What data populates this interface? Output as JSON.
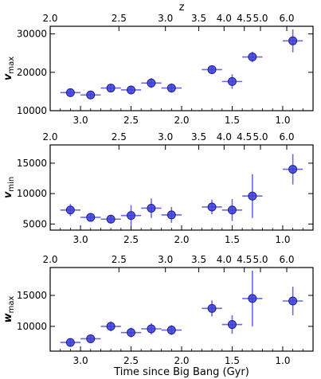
{
  "chart_data": [
    {
      "type": "scatter",
      "ylabel_main": "v",
      "ylabel_sub": "max",
      "ylim": [
        10000,
        32000
      ],
      "yticks": [
        10000,
        20000,
        30000
      ],
      "xlim": [
        3.3,
        0.7
      ],
      "xticks": [
        3.0,
        2.5,
        2.0,
        1.5,
        1.0
      ],
      "x_tick_labels": [
        "3.0",
        "2.5",
        "2.0",
        "1.5",
        "1.0"
      ],
      "top_axis_label": "z",
      "top_ticks": [
        {
          "label": "2.0",
          "t": 3.3
        },
        {
          "label": "2.5",
          "t": 2.62
        },
        {
          "label": "3.0",
          "t": 2.16
        },
        {
          "label": "3.5",
          "t": 1.83
        },
        {
          "label": "4.0",
          "t": 1.58
        },
        {
          "label": "4.5",
          "t": 1.38
        },
        {
          "label": "5.0",
          "t": 1.22
        },
        {
          "label": "6.0",
          "t": 0.96
        }
      ],
      "points": [
        {
          "x": 3.1,
          "y": 14700,
          "xerr": 0.1,
          "yerr": 900
        },
        {
          "x": 2.9,
          "y": 14100,
          "xerr": 0.1,
          "yerr": 700
        },
        {
          "x": 2.7,
          "y": 15900,
          "xerr": 0.1,
          "yerr": 900
        },
        {
          "x": 2.5,
          "y": 15400,
          "xerr": 0.1,
          "yerr": 900
        },
        {
          "x": 2.3,
          "y": 17200,
          "xerr": 0.1,
          "yerr": 1300
        },
        {
          "x": 2.1,
          "y": 15900,
          "xerr": 0.1,
          "yerr": 1200
        },
        {
          "x": 1.7,
          "y": 20700,
          "xerr": 0.1,
          "yerr": 1000
        },
        {
          "x": 1.5,
          "y": 17600,
          "xerr": 0.1,
          "yerr": 1900
        },
        {
          "x": 1.3,
          "y": 24000,
          "xerr": 0.1,
          "yerr": 1400
        },
        {
          "x": 0.9,
          "y": 28200,
          "xerr": 0.1,
          "yerr": 3000
        }
      ]
    },
    {
      "type": "scatter",
      "ylabel_main": "v",
      "ylabel_sub": "min",
      "ylim": [
        4000,
        18000
      ],
      "yticks": [
        5000,
        10000,
        15000
      ],
      "xlim": [
        3.3,
        0.7
      ],
      "xticks": [
        3.0,
        2.5,
        2.0,
        1.5,
        1.0
      ],
      "x_tick_labels": [
        "3.0",
        "2.5",
        "2.0",
        "1.5",
        "1.0"
      ],
      "top_axis_label": "",
      "top_ticks": [
        {
          "label": "2.0",
          "t": 3.3
        },
        {
          "label": "2.5",
          "t": 2.62
        },
        {
          "label": "3.0",
          "t": 2.16
        },
        {
          "label": "3.5",
          "t": 1.83
        },
        {
          "label": "4.0",
          "t": 1.58
        },
        {
          "label": "4.5",
          "t": 1.38
        },
        {
          "label": "5.0",
          "t": 1.22
        },
        {
          "label": "6.0",
          "t": 0.96
        }
      ],
      "points": [
        {
          "x": 3.1,
          "y": 7300,
          "xerr": 0.1,
          "yerr": 1000
        },
        {
          "x": 2.9,
          "y": 6100,
          "xerr": 0.1,
          "yerr": 700
        },
        {
          "x": 2.7,
          "y": 5800,
          "xerr": 0.1,
          "yerr": 700
        },
        {
          "x": 2.5,
          "y": 6400,
          "xerr": 0.1,
          "yerr": 1700
        },
        {
          "x": 2.3,
          "y": 7600,
          "xerr": 0.1,
          "yerr": 1600
        },
        {
          "x": 2.1,
          "y": 6500,
          "xerr": 0.1,
          "yerr": 1300
        },
        {
          "x": 1.7,
          "y": 7800,
          "xerr": 0.1,
          "yerr": 1200
        },
        {
          "x": 1.5,
          "y": 7300,
          "xerr": 0.1,
          "yerr": 1800
        },
        {
          "x": 1.3,
          "y": 9600,
          "xerr": 0.1,
          "yerr": 3600
        },
        {
          "x": 0.9,
          "y": 14000,
          "xerr": 0.1,
          "yerr": 2500
        }
      ]
    },
    {
      "type": "scatter",
      "ylabel_main": "w",
      "ylabel_sub": "max",
      "ylim": [
        6000,
        19500
      ],
      "yticks": [
        10000,
        15000
      ],
      "xlim": [
        3.3,
        0.7
      ],
      "xticks": [
        3.0,
        2.5,
        2.0,
        1.5,
        1.0
      ],
      "x_tick_labels": [
        "3.0",
        "2.5",
        "2.0",
        "1.5",
        "1.0"
      ],
      "top_axis_label": "",
      "xlabel": "Time since Big Bang (Gyr)",
      "top_ticks": [
        {
          "label": "2.0",
          "t": 3.3
        },
        {
          "label": "2.5",
          "t": 2.62
        },
        {
          "label": "3.0",
          "t": 2.16
        },
        {
          "label": "3.5",
          "t": 1.83
        },
        {
          "label": "4.0",
          "t": 1.58
        },
        {
          "label": "4.5",
          "t": 1.38
        },
        {
          "label": "5.0",
          "t": 1.22
        },
        {
          "label": "6.0",
          "t": 0.96
        }
      ],
      "points": [
        {
          "x": 3.1,
          "y": 7400,
          "xerr": 0.1,
          "yerr": 700
        },
        {
          "x": 2.9,
          "y": 8000,
          "xerr": 0.1,
          "yerr": 500
        },
        {
          "x": 2.7,
          "y": 10000,
          "xerr": 0.1,
          "yerr": 800
        },
        {
          "x": 2.5,
          "y": 9000,
          "xerr": 0.1,
          "yerr": 800
        },
        {
          "x": 2.3,
          "y": 9600,
          "xerr": 0.1,
          "yerr": 900
        },
        {
          "x": 2.1,
          "y": 9400,
          "xerr": 0.1,
          "yerr": 800
        },
        {
          "x": 1.7,
          "y": 12900,
          "xerr": 0.1,
          "yerr": 1300
        },
        {
          "x": 1.5,
          "y": 10300,
          "xerr": 0.1,
          "yerr": 1500
        },
        {
          "x": 1.3,
          "y": 14500,
          "xerr": 0.1,
          "yerr": 4500
        },
        {
          "x": 0.9,
          "y": 14100,
          "xerr": 0.1,
          "yerr": 2300
        }
      ]
    }
  ],
  "style": {
    "marker_color": "#3b3bd6",
    "marker_edge": "#1f1f9a",
    "errorbar_color": "#6a6ae0"
  }
}
